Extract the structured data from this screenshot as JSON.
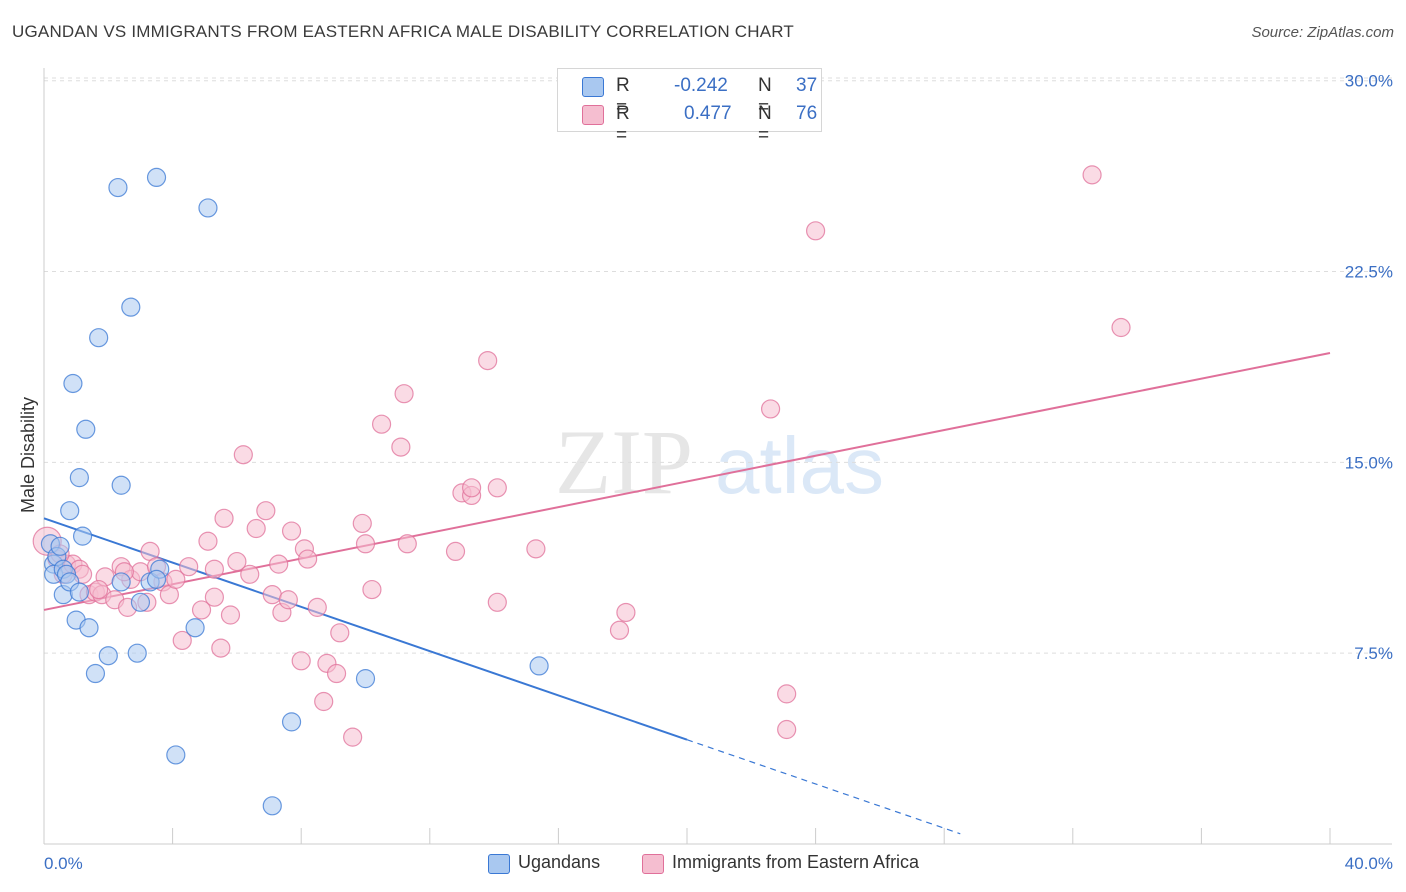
{
  "title": "UGANDAN VS IMMIGRANTS FROM EASTERN AFRICA MALE DISABILITY CORRELATION CHART",
  "source": "Source: ZipAtlas.com",
  "watermark": {
    "zip": "ZIP",
    "atlas": "atlas"
  },
  "colors": {
    "blue": "#3a78d4",
    "blue_fill": "#a9c8f0",
    "pink": "#e0709a",
    "pink_fill": "#f5bed0",
    "grid": "#dddddd",
    "tick_label": "#3b6fc4"
  },
  "legend": {
    "r_label": "R =",
    "n_label": "N =",
    "rows": [
      {
        "r": "-0.242",
        "n": "37"
      },
      {
        "r": "0.477",
        "n": "76"
      }
    ]
  },
  "bottom_legend": [
    "Ugandans",
    "Immigrants from Eastern Africa"
  ],
  "chart_data": {
    "type": "scatter",
    "title": "UGANDAN VS IMMIGRANTS FROM EASTERN AFRICA MALE DISABILITY CORRELATION CHART",
    "xlabel": "",
    "ylabel": "Male Disability",
    "xlim": [
      0,
      40
    ],
    "ylim": [
      0,
      30.5
    ],
    "x_tick_labels": [
      "0.0%",
      "40.0%"
    ],
    "y_ticks": [
      7.5,
      15.0,
      22.5,
      30.0
    ],
    "y_tick_labels": [
      "7.5%",
      "15.0%",
      "22.5%",
      "30.0%"
    ],
    "series": [
      {
        "name": "Ugandans",
        "color": "#3a78d4",
        "trend": {
          "x0": 0,
          "y0": 12.8,
          "x1": 20,
          "y1": 4.1,
          "dashed_to_x": 28.5
        },
        "points": [
          [
            0.2,
            11.8
          ],
          [
            0.3,
            11.0
          ],
          [
            0.3,
            10.6
          ],
          [
            0.4,
            11.3
          ],
          [
            0.5,
            11.7
          ],
          [
            0.6,
            10.8
          ],
          [
            0.6,
            9.8
          ],
          [
            0.7,
            10.6
          ],
          [
            0.8,
            13.1
          ],
          [
            0.8,
            10.3
          ],
          [
            0.9,
            18.1
          ],
          [
            1.0,
            8.8
          ],
          [
            1.1,
            14.4
          ],
          [
            1.1,
            9.9
          ],
          [
            1.2,
            12.1
          ],
          [
            1.3,
            16.3
          ],
          [
            1.4,
            8.5
          ],
          [
            1.6,
            6.7
          ],
          [
            1.7,
            19.9
          ],
          [
            2.0,
            7.4
          ],
          [
            2.3,
            25.8
          ],
          [
            2.4,
            14.1
          ],
          [
            2.4,
            10.3
          ],
          [
            2.7,
            21.1
          ],
          [
            2.9,
            7.5
          ],
          [
            3.0,
            9.5
          ],
          [
            3.3,
            10.3
          ],
          [
            3.5,
            26.2
          ],
          [
            3.6,
            10.8
          ],
          [
            4.1,
            3.5
          ],
          [
            4.7,
            8.5
          ],
          [
            5.1,
            25.0
          ],
          [
            7.1,
            1.5
          ],
          [
            7.7,
            4.8
          ],
          [
            10.0,
            6.5
          ],
          [
            15.4,
            7.0
          ],
          [
            3.5,
            10.4
          ]
        ]
      },
      {
        "name": "Immigrants from Eastern Africa",
        "color": "#e0709a",
        "trend": {
          "x0": 0,
          "y0": 9.2,
          "x1": 40,
          "y1": 19.3
        },
        "points": [
          [
            0.1,
            11.9
          ],
          [
            0.4,
            11.2
          ],
          [
            0.6,
            10.6
          ],
          [
            0.7,
            11.0
          ],
          [
            0.9,
            11.0
          ],
          [
            1.1,
            10.8
          ],
          [
            1.2,
            10.6
          ],
          [
            1.4,
            9.8
          ],
          [
            1.6,
            9.9
          ],
          [
            1.8,
            9.8
          ],
          [
            1.9,
            10.5
          ],
          [
            2.2,
            9.6
          ],
          [
            2.4,
            10.9
          ],
          [
            2.6,
            9.3
          ],
          [
            2.7,
            10.4
          ],
          [
            3.0,
            10.7
          ],
          [
            3.2,
            9.5
          ],
          [
            3.3,
            11.5
          ],
          [
            3.5,
            10.9
          ],
          [
            3.7,
            10.3
          ],
          [
            3.9,
            9.8
          ],
          [
            4.1,
            10.4
          ],
          [
            4.3,
            8.0
          ],
          [
            4.5,
            10.9
          ],
          [
            4.9,
            9.2
          ],
          [
            5.1,
            11.9
          ],
          [
            5.3,
            10.8
          ],
          [
            5.3,
            9.7
          ],
          [
            5.5,
            7.7
          ],
          [
            5.6,
            12.8
          ],
          [
            5.8,
            9.0
          ],
          [
            6.0,
            11.1
          ],
          [
            6.2,
            15.3
          ],
          [
            6.4,
            10.6
          ],
          [
            6.6,
            12.4
          ],
          [
            6.9,
            13.1
          ],
          [
            7.1,
            9.8
          ],
          [
            7.3,
            11.0
          ],
          [
            7.4,
            9.1
          ],
          [
            7.6,
            9.6
          ],
          [
            7.7,
            12.3
          ],
          [
            8.0,
            7.2
          ],
          [
            8.1,
            11.6
          ],
          [
            8.2,
            11.2
          ],
          [
            8.5,
            9.3
          ],
          [
            8.7,
            5.6
          ],
          [
            8.8,
            7.1
          ],
          [
            9.1,
            6.7
          ],
          [
            9.2,
            8.3
          ],
          [
            9.6,
            4.2
          ],
          [
            9.9,
            12.6
          ],
          [
            10.0,
            11.8
          ],
          [
            10.2,
            10.0
          ],
          [
            10.5,
            16.5
          ],
          [
            11.1,
            15.6
          ],
          [
            11.2,
            17.7
          ],
          [
            11.3,
            11.8
          ],
          [
            12.8,
            11.5
          ],
          [
            13.0,
            13.8
          ],
          [
            13.3,
            13.7
          ],
          [
            13.3,
            14.0
          ],
          [
            13.8,
            19.0
          ],
          [
            14.1,
            9.5
          ],
          [
            14.1,
            14.0
          ],
          [
            15.3,
            11.6
          ],
          [
            17.9,
            8.4
          ],
          [
            18.1,
            9.1
          ],
          [
            22.6,
            17.1
          ],
          [
            23.1,
            5.9
          ],
          [
            23.1,
            4.5
          ],
          [
            24.0,
            24.1
          ],
          [
            32.6,
            26.3
          ],
          [
            33.5,
            20.3
          ],
          [
            1.7,
            10.0
          ],
          [
            2.5,
            10.7
          ],
          [
            0.5,
            11.4
          ]
        ]
      }
    ]
  }
}
